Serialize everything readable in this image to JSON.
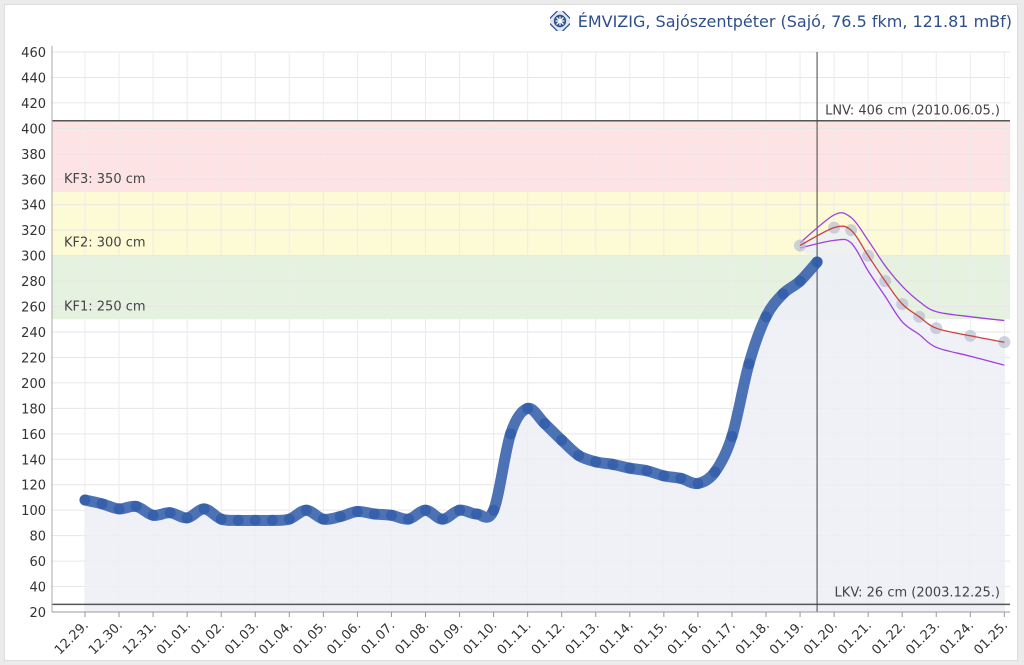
{
  "header": {
    "title": "ÉMVIZIG, Sajószentpéter (Sajó, 76.5 fkm, 121.81 mBf)",
    "logo_icon": "station-logo-icon"
  },
  "chart_data": {
    "type": "line",
    "xlabel": "",
    "ylabel": "",
    "ylim": [
      20,
      460
    ],
    "yticks": [
      20,
      40,
      60,
      80,
      100,
      120,
      140,
      160,
      180,
      200,
      220,
      240,
      260,
      280,
      300,
      320,
      340,
      360,
      380,
      400,
      420,
      440,
      460
    ],
    "date_ticks": [
      "12.29.",
      "12.30.",
      "12.31.",
      "01.01.",
      "01.02.",
      "01.03.",
      "01.04.",
      "01.05.",
      "01.06.",
      "01.07.",
      "01.08.",
      "01.09.",
      "01.10.",
      "01.11.",
      "01.12.",
      "01.13.",
      "01.14.",
      "01.15.",
      "01.16.",
      "01.17.",
      "01.18.",
      "01.19.",
      "01.20.",
      "01.21.",
      "01.22.",
      "01.23.",
      "01.24.",
      "01.25."
    ],
    "grid": true,
    "bands": [
      {
        "label": "KF1: 250 cm",
        "from": 250,
        "to": 300,
        "color": "#e6f2e0"
      },
      {
        "label": "KF2: 300 cm",
        "from": 300,
        "to": 350,
        "color": "#fcfbd6"
      },
      {
        "label": "KF3: 350 cm",
        "from": 350,
        "to": 406,
        "color": "#fde3e3"
      }
    ],
    "reference_lines": [
      {
        "label": "LNV: 406 cm (2010.06.05.)",
        "value": 406
      },
      {
        "label": "LKV: 26 cm (2003.12.25.)",
        "value": 26
      }
    ],
    "forecast_start": "01.19.",
    "series": [
      {
        "role": "measured",
        "color": "#2f5aa8",
        "points": [
          [
            "12.29.",
            108
          ],
          [
            "12.29.",
            105
          ],
          [
            "12.30.",
            101
          ],
          [
            "12.30.",
            103
          ],
          [
            "12.31.",
            96
          ],
          [
            "12.31.",
            98
          ],
          [
            "01.01.",
            94
          ],
          [
            "01.01.",
            101
          ],
          [
            "01.02.",
            93
          ],
          [
            "01.02.",
            92
          ],
          [
            "01.03.",
            92
          ],
          [
            "01.03.",
            92
          ],
          [
            "01.04.",
            93
          ],
          [
            "01.04.",
            100
          ],
          [
            "01.05.",
            93
          ],
          [
            "01.05.",
            95
          ],
          [
            "01.06.",
            99
          ],
          [
            "01.06.",
            97
          ],
          [
            "01.07.",
            96
          ],
          [
            "01.07.",
            93
          ],
          [
            "01.08.",
            100
          ],
          [
            "01.08.",
            93
          ],
          [
            "01.09.",
            100
          ],
          [
            "01.09.",
            97
          ],
          [
            "01.10.",
            100
          ],
          [
            "01.10.",
            160
          ],
          [
            "01.11.",
            180
          ],
          [
            "01.11.",
            168
          ],
          [
            "01.12.",
            155
          ],
          [
            "01.12.",
            143
          ],
          [
            "01.13.",
            138
          ],
          [
            "01.13.",
            136
          ],
          [
            "01.14.",
            133
          ],
          [
            "01.14.",
            131
          ],
          [
            "01.15.",
            127
          ],
          [
            "01.15.",
            125
          ],
          [
            "01.16.",
            121
          ],
          [
            "01.16.",
            130
          ],
          [
            "01.17.",
            158
          ],
          [
            "01.17.",
            215
          ],
          [
            "01.18.",
            252
          ],
          [
            "01.18.",
            270
          ],
          [
            "01.19.",
            280
          ],
          [
            "01.19.",
            295
          ]
        ]
      },
      {
        "role": "forecast",
        "color": "#d04040",
        "points": [
          [
            "01.19.",
            308
          ],
          [
            "01.20.",
            322
          ],
          [
            "01.20.",
            320
          ],
          [
            "01.21.",
            300
          ],
          [
            "01.21.",
            280
          ],
          [
            "01.22.",
            262
          ],
          [
            "01.22.",
            252
          ],
          [
            "01.23.",
            243
          ],
          [
            "01.24.",
            237
          ],
          [
            "01.25.",
            232
          ]
        ]
      },
      {
        "role": "upper-bound",
        "color": "#a040e0",
        "points": [
          [
            "01.19.",
            310
          ],
          [
            "01.20.",
            332
          ],
          [
            "01.20.",
            330
          ],
          [
            "01.21.",
            312
          ],
          [
            "01.21.",
            292
          ],
          [
            "01.22.",
            276
          ],
          [
            "01.22.",
            264
          ],
          [
            "01.23.",
            256
          ],
          [
            "01.24.",
            252
          ],
          [
            "01.25.",
            249
          ]
        ]
      },
      {
        "role": "lower-bound",
        "color": "#a040e0",
        "points": [
          [
            "01.19.",
            306
          ],
          [
            "01.20.",
            312
          ],
          [
            "01.20.",
            310
          ],
          [
            "01.21.",
            288
          ],
          [
            "01.21.",
            268
          ],
          [
            "01.22.",
            248
          ],
          [
            "01.22.",
            238
          ],
          [
            "01.23.",
            228
          ],
          [
            "01.24.",
            221
          ],
          [
            "01.25.",
            214
          ]
        ]
      }
    ]
  }
}
